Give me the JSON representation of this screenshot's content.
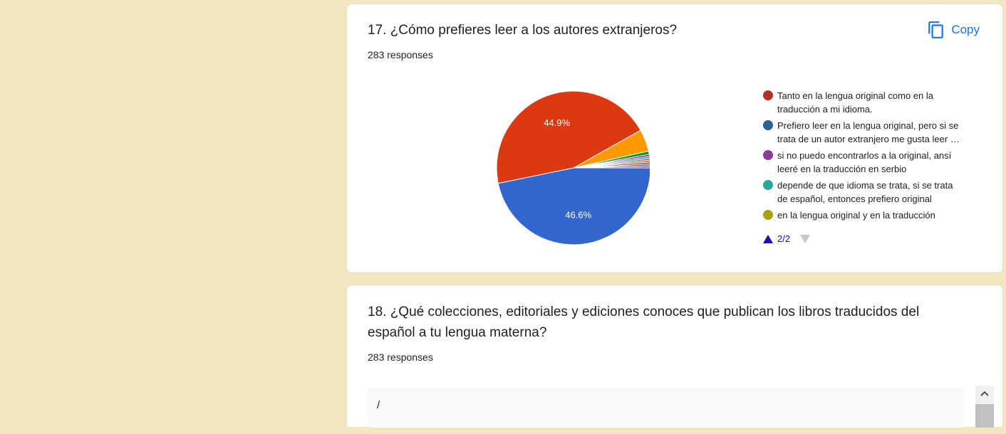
{
  "question17": {
    "title": "17. ¿Cómo prefieres leer a los autores extranjeros?",
    "responses": "283 responses",
    "copy_label": "Copy",
    "copy_icon": "copy-icon",
    "legend": [
      {
        "label": "Tanto en la lengua original como en la traducción a mi idioma.",
        "color": "#b3302c"
      },
      {
        "label": "Prefiero leer en la lengua original, pero si se trata de un autor extranjero me gusta leer la traducción",
        "color": "#2e5f94"
      },
      {
        "label": "si no puedo encontrarlos a la original, ansí leeré en la traducción en serbio",
        "color": "#8d3a9b"
      },
      {
        "label": "depende de que idioma se trata, si se trata de español, entonces prefiero original",
        "color": "#2aa796"
      },
      {
        "label": "en la lengua original y en la traducción",
        "color": "#a5a216"
      }
    ],
    "pager": "2/2"
  },
  "chart_data": {
    "type": "pie",
    "slices": [
      {
        "label": "Tanto en la lengua original como en la traducción a mi idioma.",
        "value": 46.6,
        "color": "#3366cc",
        "display": "46.6%"
      },
      {
        "label": "Prefiero leer en la lengua original, pero si se trata de un autor extranjero me g…",
        "value": 44.9,
        "color": "#dc3912",
        "display": "44.9%"
      },
      {
        "label": "",
        "value": 4.6,
        "color": "#ff9900",
        "display": ""
      },
      {
        "label": "",
        "value": 0.7,
        "color": "#109618",
        "display": ""
      },
      {
        "label": "",
        "value": 0.4,
        "color": "#990099",
        "display": ""
      },
      {
        "label": "",
        "value": 0.4,
        "color": "#0099c6",
        "display": ""
      },
      {
        "label": "",
        "value": 0.4,
        "color": "#dd4477",
        "display": ""
      },
      {
        "label": "",
        "value": 0.4,
        "color": "#66aa00",
        "display": ""
      },
      {
        "label": "",
        "value": 0.4,
        "color": "#b82e2e",
        "display": ""
      },
      {
        "label": "",
        "value": 0.4,
        "color": "#316395",
        "display": ""
      },
      {
        "label": "",
        "value": 0.4,
        "color": "#994499",
        "display": ""
      }
    ]
  },
  "question18": {
    "title": "18. ¿Qué colecciones, editoriales y ediciones conoces que publican los libros traducidos del español a tu lengua materna?",
    "responses": "283 responses",
    "first_response": "/"
  }
}
